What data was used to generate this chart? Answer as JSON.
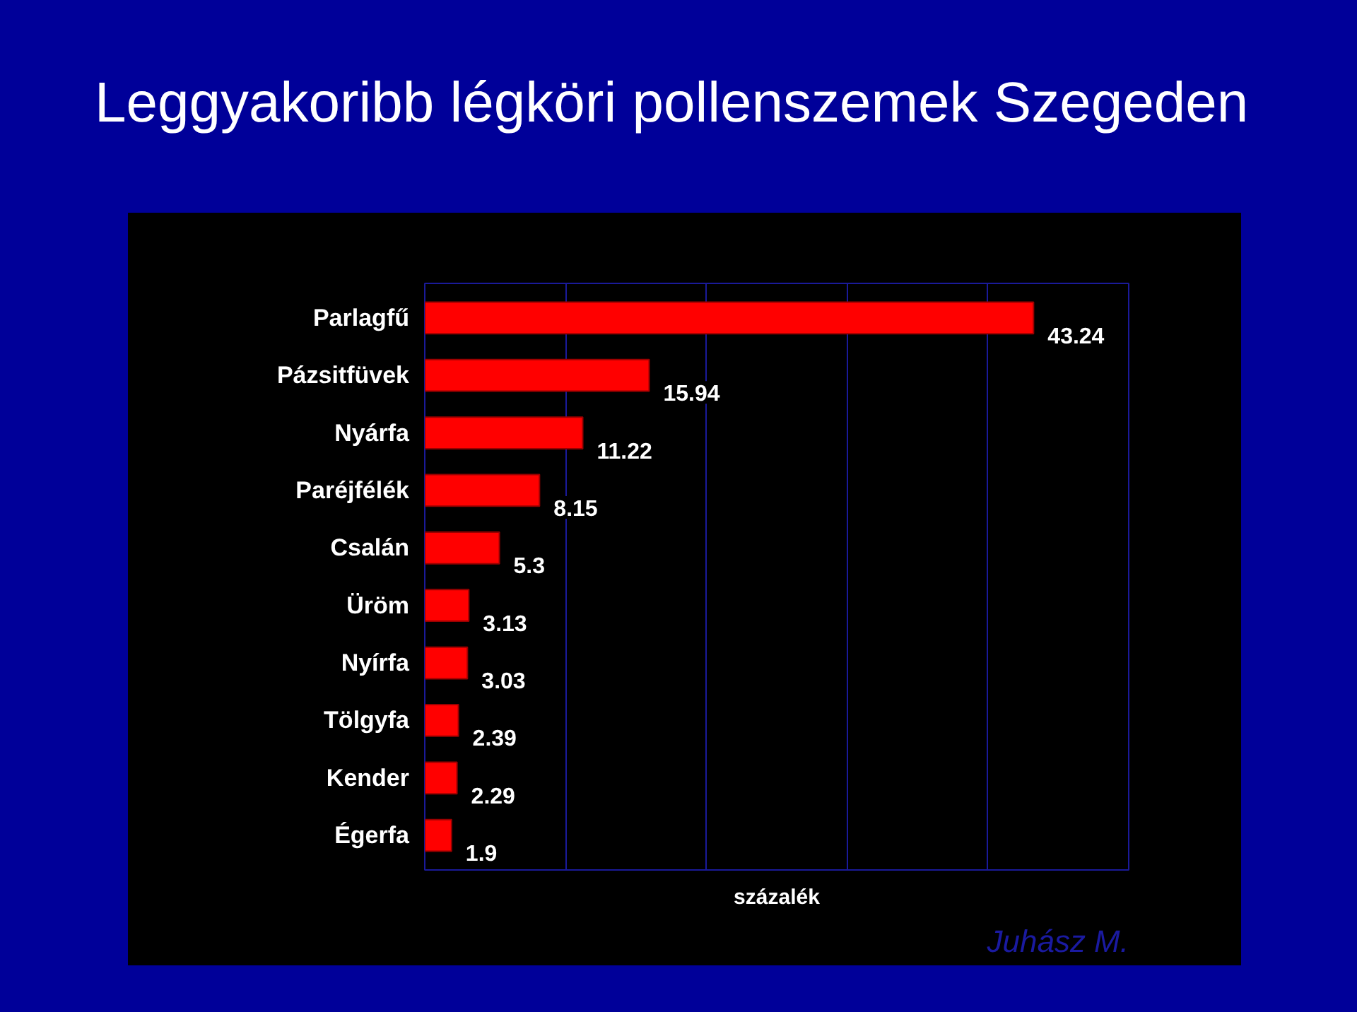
{
  "chart_data": {
    "type": "bar",
    "orientation": "horizontal",
    "title": "Leggyakoribb légköri pollenszemek Szegeden",
    "categories": [
      "Parlagfű",
      "Pázsitfüvek",
      "Nyárfa",
      "Paréjfélék",
      "Csalán",
      "Üröm",
      "Nyírfa",
      "Tölgyfa",
      "Kender",
      "Égerfa"
    ],
    "values": [
      43.24,
      15.94,
      11.22,
      8.15,
      5.3,
      3.13,
      3.03,
      2.39,
      2.29,
      1.9
    ],
    "color": "#ff0000",
    "data_labels": true,
    "xlabel": "százalék",
    "xlim": [
      0,
      50
    ],
    "xticks": [
      {
        "value": 10,
        "label": null
      },
      {
        "value": 20,
        "label": null
      },
      {
        "value": 30,
        "label": null
      },
      {
        "value": 40,
        "label": null
      }
    ],
    "tick_labels": "y",
    "grid": "x",
    "annotations": [
      "Juhász M."
    ]
  }
}
